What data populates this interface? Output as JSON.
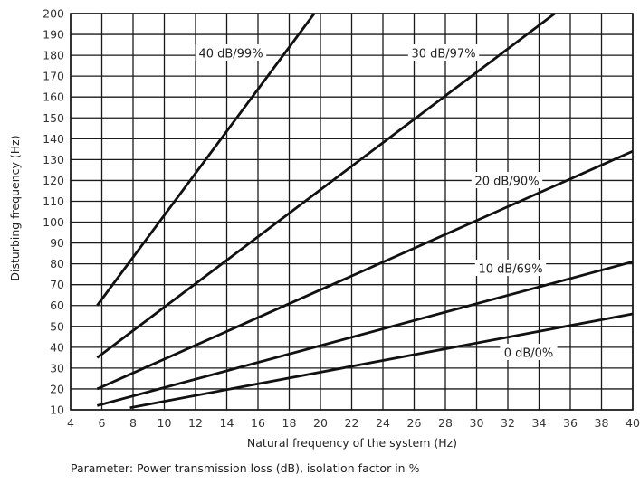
{
  "chart_data": {
    "type": "line",
    "xlabel": "Natural frequency of the system (Hz)",
    "ylabel": "Disturbing frequency (Hz)",
    "xlim": [
      4,
      40
    ],
    "ylim": [
      10,
      200
    ],
    "x_ticks": [
      4,
      6,
      8,
      10,
      12,
      14,
      16,
      18,
      20,
      22,
      24,
      26,
      28,
      30,
      32,
      34,
      36,
      38,
      40
    ],
    "y_ticks": [
      10,
      20,
      30,
      40,
      50,
      60,
      70,
      80,
      90,
      100,
      110,
      120,
      130,
      140,
      150,
      160,
      170,
      180,
      190,
      200
    ],
    "grid": true,
    "series": [
      {
        "name": "40 dB/99%",
        "x": [
          5.7,
          19.6
        ],
        "y": [
          60,
          200
        ]
      },
      {
        "name": "30 dB/97%",
        "x": [
          5.7,
          35.0
        ],
        "y": [
          35,
          200
        ]
      },
      {
        "name": "20 dB/90%",
        "x": [
          5.7,
          40.0
        ],
        "y": [
          20,
          134
        ]
      },
      {
        "name": "10 dB/69%",
        "x": [
          5.7,
          40.0
        ],
        "y": [
          12,
          81
        ]
      },
      {
        "name": "0 dB/0%",
        "x": [
          7.8,
          40.0
        ],
        "y": [
          11,
          56
        ]
      }
    ]
  },
  "caption": "Parameter: Power transmission loss (dB), isolation factor in %"
}
